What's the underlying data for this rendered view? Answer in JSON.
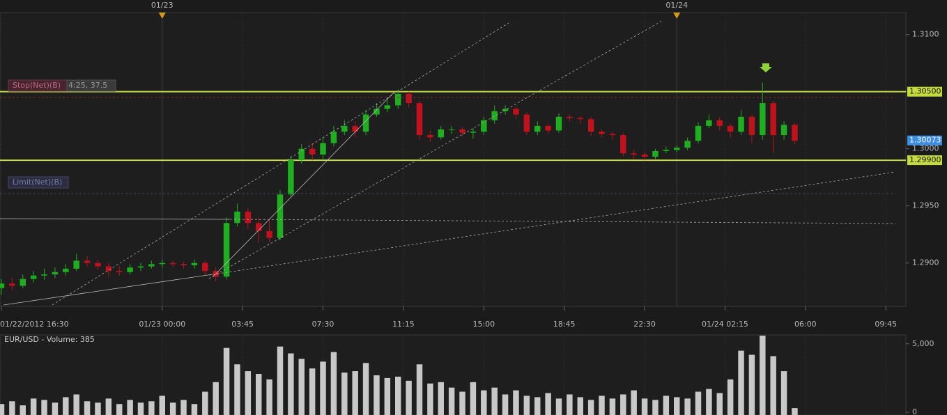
{
  "chart_data": {
    "type": "candlestick",
    "title": "EUR/USD - Volume: 385",
    "up_color": "#1fae1f",
    "down_color": "#c0121c",
    "xlim": [
      0,
      42.25
    ],
    "xticks": [
      {
        "value": 0,
        "label": "01/22/2012 16:30"
      },
      {
        "value": 7.5,
        "label": "01/23 00:00"
      },
      {
        "value": 11.25,
        "label": "03:45"
      },
      {
        "value": 15,
        "label": "07:30"
      },
      {
        "value": 18.75,
        "label": "11:15"
      },
      {
        "value": 22.5,
        "label": "15:00"
      },
      {
        "value": 26.25,
        "label": "18:45"
      },
      {
        "value": 30,
        "label": "22:30"
      },
      {
        "value": 33.75,
        "label": "01/24 02:15"
      },
      {
        "value": 37.5,
        "label": "06:00"
      },
      {
        "value": 41.25,
        "label": "09:45"
      }
    ],
    "date_markers": [
      {
        "value": 7.5,
        "label": "01/23"
      },
      {
        "value": 31.5,
        "label": "01/24"
      }
    ],
    "ylim": [
      1.2862,
      1.3112
    ],
    "yticks": [
      {
        "value": 1.29,
        "label": "1.2900"
      },
      {
        "value": 1.295,
        "label": "1.2950"
      },
      {
        "value": 1.3,
        "label": "1.3000"
      },
      {
        "value": 1.305,
        "label": "1.3050"
      },
      {
        "value": 1.31,
        "label": "1.3100"
      }
    ],
    "levels": [
      {
        "value": 1.305,
        "label": "1.30500",
        "color": "#c5dc3a"
      },
      {
        "value": 1.299,
        "label": "1.29900",
        "color": "#c5dc3a"
      }
    ],
    "last_price": {
      "value": 1.30073,
      "label": "1.30073",
      "color": "#3d8ee0"
    },
    "orders": [
      {
        "label": "Stop(Net)(B)",
        "detail": "4:25, 37.5"
      },
      {
        "label": "Limit(Net)(B)"
      }
    ],
    "x": [
      0,
      0.5,
      1,
      1.5,
      2,
      2.5,
      3,
      3.5,
      4,
      4.5,
      5,
      5.5,
      6,
      6.5,
      7,
      7.5,
      8,
      8.5,
      9,
      9.5,
      10,
      10.5,
      11,
      11.5,
      12,
      12.5,
      13,
      13.5,
      14,
      14.5,
      15,
      15.5,
      16,
      16.5,
      17,
      17.5,
      18,
      18.5,
      19,
      19.5,
      20,
      20.5,
      21,
      21.5,
      22,
      22.5,
      23,
      23.5,
      24,
      24.5,
      25,
      25.5,
      26,
      26.5,
      27,
      27.5,
      28,
      28.5,
      29,
      29.5,
      30,
      30.5,
      31,
      31.5,
      32,
      32.5,
      33,
      33.5,
      34,
      34.5,
      35,
      35.5,
      36,
      36.5,
      37
    ],
    "open": [
      1.2878,
      1.2882,
      1.288,
      1.2886,
      1.2889,
      1.289,
      1.2892,
      1.2895,
      1.2902,
      1.29,
      1.2897,
      1.2893,
      1.2892,
      1.2896,
      1.2897,
      1.2899,
      1.29,
      1.2899,
      1.2898,
      1.29,
      1.2893,
      1.2888,
      1.2935,
      1.2945,
      1.2935,
      1.2928,
      1.2922,
      1.296,
      1.299,
      1.3,
      1.2995,
      1.3005,
      1.3015,
      1.302,
      1.3015,
      1.303,
      1.3035,
      1.3038,
      1.3048,
      1.304,
      1.3012,
      1.301,
      1.3017,
      1.3017,
      1.3014,
      1.3015,
      1.3025,
      1.3033,
      1.3035,
      1.303,
      1.3015,
      1.302,
      1.3016,
      1.3028,
      1.3027,
      1.3026,
      1.3015,
      1.3013,
      1.3012,
      1.2996,
      1.2995,
      1.2993,
      1.2998,
      1.2999,
      1.3001,
      1.3007,
      1.302,
      1.3025,
      1.302,
      1.3015,
      1.3028,
      1.3012,
      1.304,
      1.3012,
      1.3021
    ],
    "high": [
      1.2886,
      1.2887,
      1.289,
      1.2893,
      1.2895,
      1.2896,
      1.2899,
      1.2908,
      1.2906,
      1.2903,
      1.29,
      1.2897,
      1.2899,
      1.29,
      1.2902,
      1.2903,
      1.2902,
      1.2901,
      1.2903,
      1.2902,
      1.2896,
      1.294,
      1.2952,
      1.2948,
      1.294,
      1.2938,
      1.2964,
      1.2994,
      1.3004,
      1.3005,
      1.301,
      1.302,
      1.3025,
      1.3024,
      1.3034,
      1.304,
      1.3044,
      1.3052,
      1.305,
      1.3042,
      1.3016,
      1.302,
      1.302,
      1.3019,
      1.3018,
      1.3028,
      1.3038,
      1.3038,
      1.3037,
      1.3032,
      1.3024,
      1.3022,
      1.3031,
      1.303,
      1.3029,
      1.3028,
      1.3017,
      1.3015,
      1.3014,
      1.2999,
      1.2997,
      1.3,
      1.3002,
      1.3003,
      1.301,
      1.3023,
      1.303,
      1.3028,
      1.3022,
      1.3034,
      1.303,
      1.3058,
      1.3042,
      1.3024,
      1.3023
    ],
    "low": [
      1.2872,
      1.2876,
      1.2878,
      1.2883,
      1.2885,
      1.2887,
      1.2889,
      1.2893,
      1.2897,
      1.2894,
      1.2888,
      1.2889,
      1.289,
      1.2893,
      1.2895,
      1.2896,
      1.2896,
      1.2895,
      1.2895,
      1.2889,
      1.2884,
      1.2886,
      1.2932,
      1.293,
      1.2918,
      1.2918,
      1.292,
      1.2958,
      1.2987,
      1.299,
      1.299,
      1.3002,
      1.3012,
      1.301,
      1.3012,
      1.3028,
      1.3032,
      1.3035,
      1.3036,
      1.3008,
      1.3006,
      1.3008,
      1.3013,
      1.3011,
      1.3009,
      1.3012,
      1.3022,
      1.303,
      1.3026,
      1.3012,
      1.3012,
      1.3013,
      1.3014,
      1.3024,
      1.3022,
      1.3011,
      1.301,
      1.3008,
      1.2993,
      1.2991,
      1.299,
      1.2991,
      1.2996,
      1.2997,
      1.2999,
      1.3005,
      1.3018,
      1.3016,
      1.301,
      1.3012,
      1.3005,
      1.3008,
      1.2996,
      1.3008,
      1.3004
    ],
    "close": [
      1.2882,
      1.288,
      1.2886,
      1.2889,
      1.289,
      1.2892,
      1.2895,
      1.2902,
      1.29,
      1.2897,
      1.2893,
      1.2892,
      1.2896,
      1.2897,
      1.2899,
      1.29,
      1.2899,
      1.2898,
      1.29,
      1.2893,
      1.2888,
      1.2935,
      1.2945,
      1.2935,
      1.2928,
      1.2922,
      1.296,
      1.299,
      1.3,
      1.2995,
      1.3005,
      1.3015,
      1.302,
      1.3015,
      1.303,
      1.3035,
      1.3038,
      1.3048,
      1.304,
      1.3012,
      1.301,
      1.3017,
      1.3017,
      1.3014,
      1.3015,
      1.3025,
      1.3033,
      1.3035,
      1.303,
      1.3015,
      1.302,
      1.3016,
      1.3028,
      1.3027,
      1.3026,
      1.3015,
      1.3013,
      1.3012,
      1.2996,
      1.2995,
      1.2993,
      1.2998,
      1.2999,
      1.3001,
      1.3007,
      1.302,
      1.3025,
      1.302,
      1.3015,
      1.3028,
      1.3012,
      1.304,
      1.3012,
      1.3021,
      1.3007
    ],
    "volume": [
      600,
      800,
      500,
      1000,
      900,
      700,
      1100,
      1300,
      800,
      700,
      1000,
      600,
      900,
      700,
      800,
      1200,
      700,
      900,
      600,
      1500,
      2200,
      4700,
      3500,
      3000,
      2800,
      2400,
      4800,
      4300,
      3900,
      3200,
      3700,
      4400,
      2900,
      3000,
      3600,
      2700,
      2500,
      2600,
      2300,
      3500,
      2100,
      2200,
      1800,
      1500,
      2200,
      1600,
      1800,
      1300,
      1600,
      1200,
      1100,
      1400,
      1000,
      1300,
      1100,
      900,
      1200,
      1000,
      1300,
      1600,
      1000,
      900,
      1200,
      1100,
      1000,
      1500,
      1700,
      1400,
      2400,
      4500,
      4200,
      5600,
      4100,
      3000,
      300
    ],
    "volume_color": "#c8c8c8",
    "volume_ylim": [
      0,
      5600
    ],
    "volume_yticks": [
      0,
      {
        "value": 5000,
        "label": "5,000"
      }
    ]
  }
}
